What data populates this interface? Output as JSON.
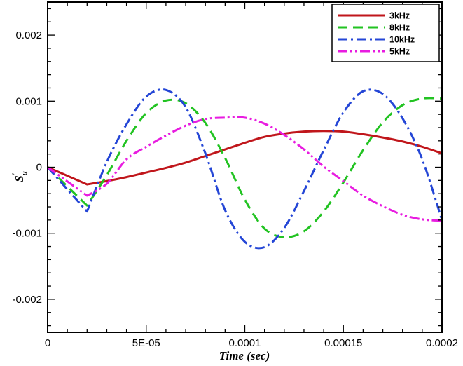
{
  "chart_data": {
    "type": "line",
    "title": "",
    "xlabel": "Time (sec)",
    "ylabel": "S'u",
    "ylabel_main": "S",
    "ylabel_sub": "u",
    "ylabel_sup": "'",
    "xlim": [
      0,
      0.0002
    ],
    "ylim": [
      -0.0025,
      0.0025
    ],
    "grid": false,
    "legend_position": "top-right",
    "x_ticks": [
      {
        "value": 0,
        "label": "0"
      },
      {
        "value": 5e-05,
        "label": "5E-05"
      },
      {
        "value": 0.0001,
        "label": "0.0001"
      },
      {
        "value": 0.00015,
        "label": "0.00015"
      },
      {
        "value": 0.0002,
        "label": "0.0002"
      }
    ],
    "y_ticks": [
      {
        "value": 0.002,
        "label": "0.002"
      },
      {
        "value": 0.001,
        "label": "0.001"
      },
      {
        "value": 0,
        "label": "0"
      },
      {
        "value": -0.001,
        "label": "-0.001"
      },
      {
        "value": -0.002,
        "label": "-0.002"
      }
    ],
    "series": [
      {
        "name": "3kHz",
        "color": "#c0161b",
        "dash": "solid",
        "x": [
          0,
          2e-05,
          3e-05,
          4e-05,
          5e-05,
          6e-05,
          7e-05,
          8e-05,
          9e-05,
          0.0001,
          0.00011,
          0.00012,
          0.00013,
          0.00014,
          0.00015,
          0.00016,
          0.00017,
          0.00018,
          0.00019,
          0.0002
        ],
        "y": [
          0,
          -0.00026,
          -0.00021,
          -0.00015,
          -8e-05,
          -1e-05,
          7e-05,
          0.00017,
          0.00027,
          0.00037,
          0.00046,
          0.00051,
          0.00054,
          0.00055,
          0.00054,
          0.0005,
          0.00045,
          0.00039,
          0.00031,
          0.00021
        ]
      },
      {
        "name": "8kHz",
        "color": "#22c322",
        "dash": "dash",
        "x": [
          0,
          2e-05,
          3e-05,
          4e-05,
          5e-05,
          6e-05,
          7e-05,
          8e-05,
          9e-05,
          0.0001,
          0.00011,
          0.00012,
          0.00013,
          0.00014,
          0.00015,
          0.00016,
          0.00017,
          0.00018,
          0.00019,
          0.0002
        ],
        "y": [
          0,
          -0.00058,
          -0.00012,
          0.0004,
          0.00082,
          0.00101,
          0.00097,
          0.00067,
          0.00014,
          -0.00049,
          -0.00093,
          -0.00106,
          -0.00097,
          -0.00067,
          -0.00023,
          0.00026,
          0.00068,
          0.00094,
          0.00104,
          0.00104
        ]
      },
      {
        "name": "10kHz",
        "color": "#2446d6",
        "dash": "dashdot",
        "x": [
          0,
          2e-05,
          3e-05,
          4e-05,
          5e-05,
          6e-05,
          7e-05,
          8e-05,
          9e-05,
          0.0001,
          0.00011,
          0.00012,
          0.00013,
          0.00014,
          0.00015,
          0.00016,
          0.00017,
          0.00018,
          0.00019,
          0.0002
        ],
        "y": [
          0,
          -0.00067,
          8e-05,
          0.00065,
          0.00107,
          0.00117,
          0.00091,
          0.00021,
          -0.00065,
          -0.00113,
          -0.00121,
          -0.00092,
          -0.00036,
          0.00026,
          0.00083,
          0.00115,
          0.00111,
          0.00074,
          0.00012,
          -0.0008
        ]
      },
      {
        "name": "5kHz",
        "color": "#e81ce0",
        "dash": "dashdotdot",
        "x": [
          0,
          2e-05,
          3e-05,
          4e-05,
          5e-05,
          6e-05,
          7e-05,
          8e-05,
          9e-05,
          0.0001,
          0.00011,
          0.00012,
          0.00013,
          0.00014,
          0.00015,
          0.00016,
          0.00017,
          0.00018,
          0.00019,
          0.0002
        ],
        "y": [
          0,
          -0.00043,
          -0.00025,
          0.00012,
          0.00031,
          0.00048,
          0.00063,
          0.00073,
          0.00075,
          0.00075,
          0.00066,
          0.00049,
          0.00027,
          1e-05,
          -0.00021,
          -0.00043,
          -0.00059,
          -0.00072,
          -0.00079,
          -0.00081
        ]
      }
    ]
  }
}
